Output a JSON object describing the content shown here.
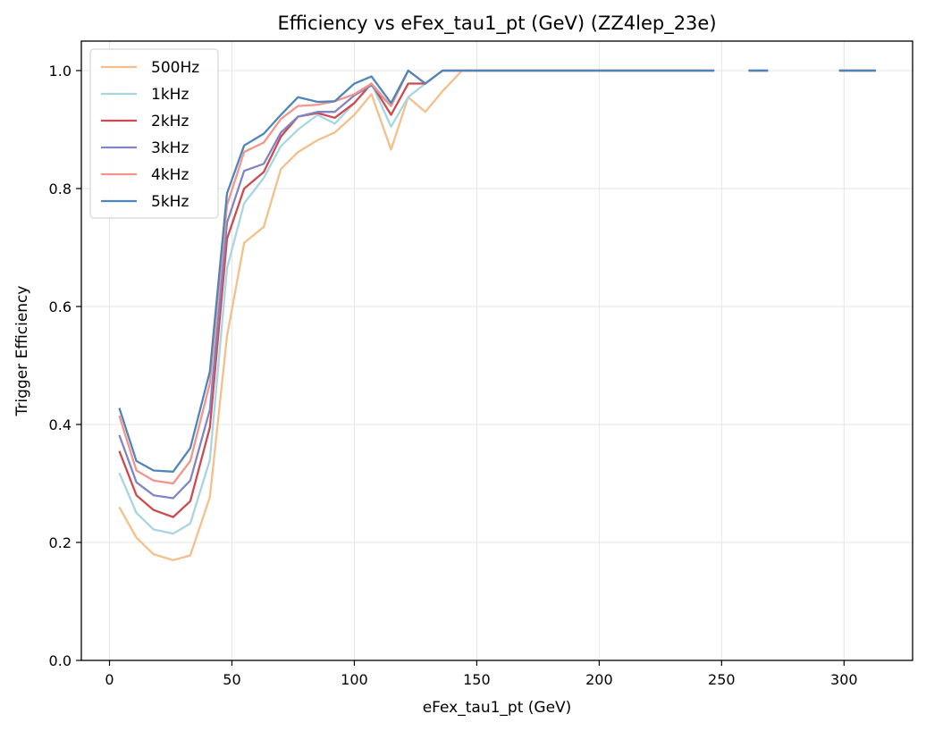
{
  "chart_data": {
    "type": "line",
    "title": "Efficiency vs eFex_tau1_pt (GeV) (ZZ4lep_23e)",
    "xlabel": "eFex_tau1_pt (GeV)",
    "ylabel": "Trigger Efficiency",
    "xlim": [
      -11.5,
      328
    ],
    "ylim": [
      0,
      1.05
    ],
    "xticks": [
      0,
      50,
      100,
      150,
      200,
      250,
      300
    ],
    "yticks": [
      0.0,
      0.2,
      0.4,
      0.6,
      0.8,
      1.0
    ],
    "grid": true,
    "legend_position": "upper-left",
    "x": [
      4,
      11,
      18,
      26,
      33,
      41,
      48,
      55,
      63,
      70,
      77,
      85,
      92,
      100,
      107,
      115,
      122,
      129,
      136,
      144,
      151,
      159,
      166,
      173,
      181,
      188,
      195,
      203,
      210,
      217,
      225,
      232,
      239,
      247,
      254,
      261,
      269,
      276,
      283,
      291,
      298,
      305,
      313
    ],
    "series": [
      {
        "name": "500Hz",
        "color": "#f4bf8b",
        "values": [
          0.26,
          0.208,
          0.18,
          0.17,
          0.178,
          0.277,
          0.55,
          0.708,
          0.735,
          0.833,
          0.862,
          0.882,
          0.895,
          0.925,
          0.96,
          0.866,
          0.955,
          0.93,
          0.965,
          1.0,
          1.0,
          1.0,
          1.0,
          1.0,
          1.0,
          1.0,
          1.0,
          1.0,
          1.0,
          1.0,
          1.0,
          1.0,
          1.0,
          1.0,
          null,
          1.0,
          1.0,
          null,
          null,
          null,
          1.0,
          1.0,
          1.0
        ]
      },
      {
        "name": "1kHz",
        "color": "#a8d5e2",
        "values": [
          0.318,
          0.25,
          0.222,
          0.215,
          0.232,
          0.34,
          0.665,
          0.775,
          0.818,
          0.872,
          0.9,
          0.925,
          0.91,
          0.945,
          0.978,
          0.905,
          0.955,
          0.978,
          1.0,
          1.0,
          1.0,
          1.0,
          1.0,
          1.0,
          1.0,
          1.0,
          1.0,
          1.0,
          1.0,
          1.0,
          1.0,
          1.0,
          1.0,
          1.0,
          null,
          1.0,
          1.0,
          null,
          null,
          null,
          1.0,
          1.0,
          1.0
        ]
      },
      {
        "name": "2kHz",
        "color": "#cd4b4e",
        "values": [
          0.355,
          0.28,
          0.255,
          0.243,
          0.27,
          0.395,
          0.715,
          0.8,
          0.828,
          0.888,
          0.922,
          0.928,
          0.92,
          0.945,
          0.978,
          0.925,
          0.978,
          0.978,
          1.0,
          1.0,
          1.0,
          1.0,
          1.0,
          1.0,
          1.0,
          1.0,
          1.0,
          1.0,
          1.0,
          1.0,
          1.0,
          1.0,
          1.0,
          1.0,
          null,
          1.0,
          1.0,
          null,
          null,
          null,
          1.0,
          1.0,
          1.0
        ]
      },
      {
        "name": "3kHz",
        "color": "#8185c4",
        "values": [
          0.382,
          0.302,
          0.28,
          0.275,
          0.305,
          0.425,
          0.742,
          0.83,
          0.842,
          0.895,
          0.922,
          0.93,
          0.93,
          0.958,
          0.975,
          0.94,
          1.0,
          0.978,
          1.0,
          1.0,
          1.0,
          1.0,
          1.0,
          1.0,
          1.0,
          1.0,
          1.0,
          1.0,
          1.0,
          1.0,
          1.0,
          1.0,
          1.0,
          1.0,
          null,
          1.0,
          1.0,
          null,
          null,
          null,
          1.0,
          1.0,
          1.0
        ]
      },
      {
        "name": "4kHz",
        "color": "#f4958b",
        "values": [
          0.415,
          0.322,
          0.305,
          0.3,
          0.338,
          0.47,
          0.772,
          0.862,
          0.878,
          0.918,
          0.94,
          0.942,
          0.948,
          0.96,
          0.978,
          0.94,
          1.0,
          0.978,
          1.0,
          1.0,
          1.0,
          1.0,
          1.0,
          1.0,
          1.0,
          1.0,
          1.0,
          1.0,
          1.0,
          1.0,
          1.0,
          1.0,
          1.0,
          1.0,
          null,
          1.0,
          1.0,
          null,
          null,
          null,
          1.0,
          1.0,
          1.0
        ]
      },
      {
        "name": "5kHz",
        "color": "#4f86b9",
        "values": [
          0.428,
          0.338,
          0.322,
          0.32,
          0.36,
          0.49,
          0.792,
          0.873,
          0.893,
          0.925,
          0.955,
          0.947,
          0.948,
          0.978,
          0.99,
          0.945,
          1.0,
          0.978,
          1.0,
          1.0,
          1.0,
          1.0,
          1.0,
          1.0,
          1.0,
          1.0,
          1.0,
          1.0,
          1.0,
          1.0,
          1.0,
          1.0,
          1.0,
          1.0,
          null,
          1.0,
          1.0,
          null,
          null,
          null,
          1.0,
          1.0,
          1.0
        ]
      }
    ]
  }
}
